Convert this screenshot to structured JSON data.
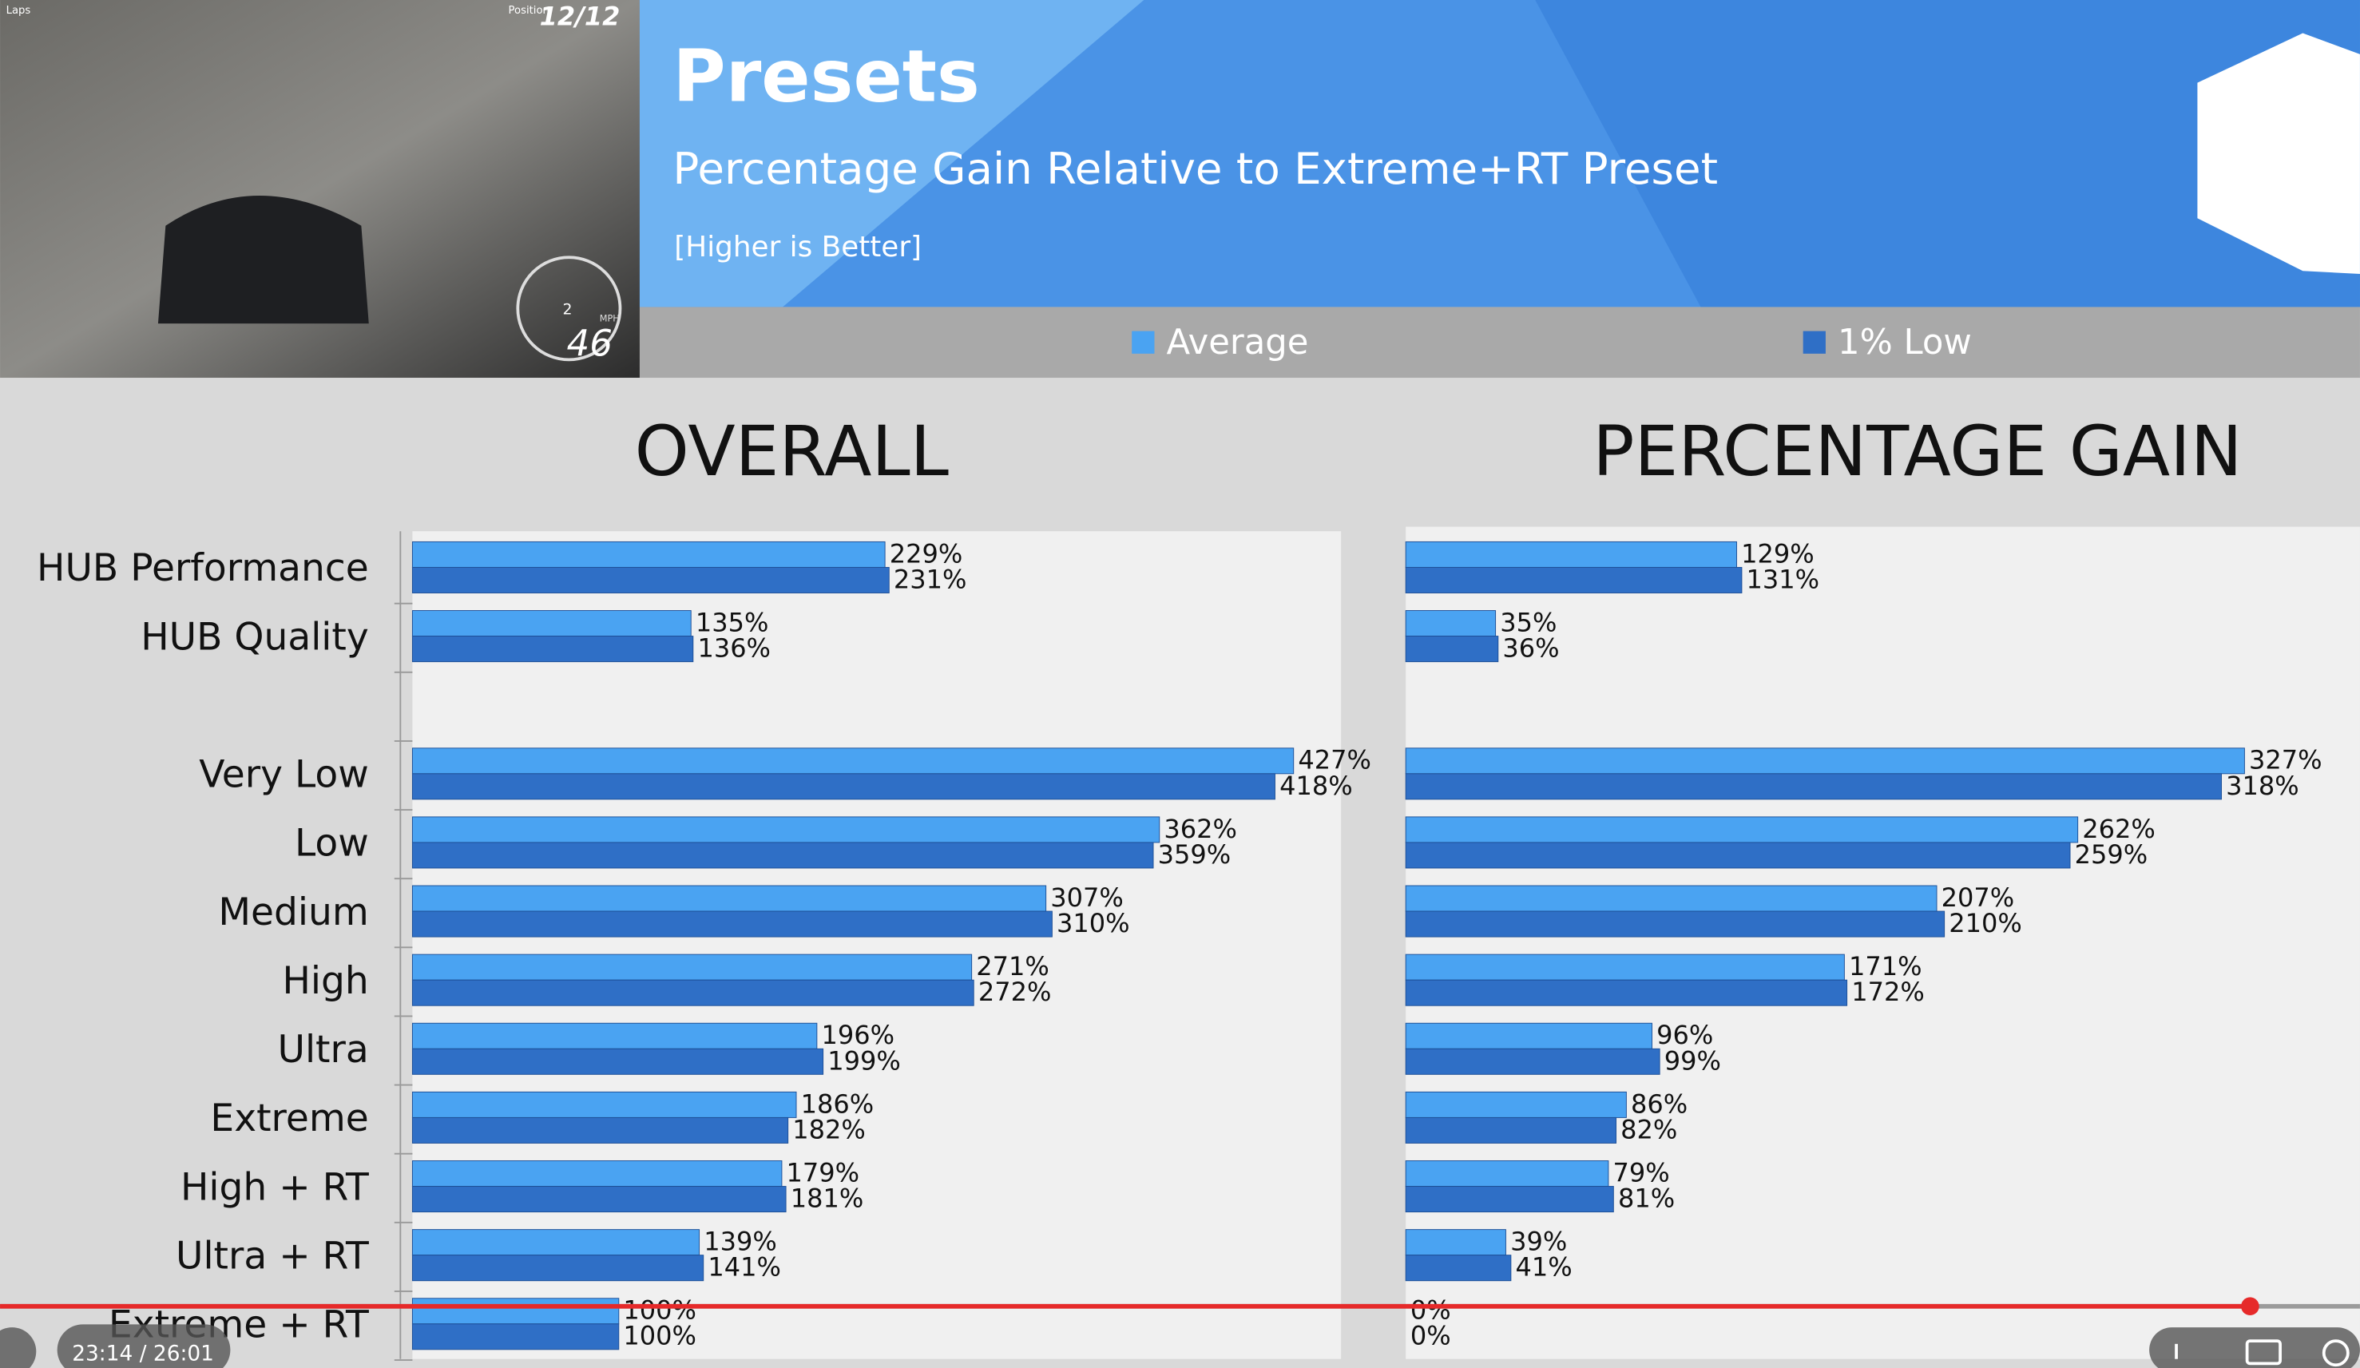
{
  "header": {
    "title": "Presets",
    "subtitle": "Percentage Gain Relative to Extreme+RT Preset",
    "note": "[Higher is Better]"
  },
  "video_hud": {
    "laps": "Laps",
    "position": "Position",
    "place": "12/12",
    "gear": "2",
    "unit": "MPH",
    "speed": "46"
  },
  "player": {
    "time": "23:14 / 26:01"
  },
  "chart_data": [
    {
      "type": "bar",
      "orientation": "horizontal",
      "title": "OVERALL",
      "categories": [
        "HUB Performance",
        "HUB Quality",
        null,
        "Very Low",
        "Low",
        "Medium",
        "High",
        "Ultra",
        "Extreme",
        "High + RT",
        "Ultra + RT",
        "Extreme + RT"
      ],
      "xlim": [
        0,
        450
      ],
      "series": [
        {
          "name": "Average",
          "color": "#4aa3f2",
          "values": [
            229,
            135,
            null,
            427,
            362,
            307,
            271,
            196,
            186,
            179,
            139,
            100
          ],
          "value_labels": [
            "229%",
            "135%",
            null,
            "427%",
            "362%",
            "307%",
            "271%",
            "196%",
            "186%",
            "179%",
            "139%",
            "100%"
          ]
        },
        {
          "name": "1% Low",
          "color": "#2f6fc6",
          "values": [
            231,
            136,
            null,
            418,
            359,
            310,
            272,
            199,
            182,
            181,
            141,
            100
          ],
          "value_labels": [
            "231%",
            "136%",
            null,
            "418%",
            "359%",
            "310%",
            "272%",
            "199%",
            "182%",
            "181%",
            "141%",
            "100%"
          ]
        }
      ]
    },
    {
      "type": "bar",
      "orientation": "horizontal",
      "title": "PERCENTAGE GAIN",
      "xlim": [
        0,
        372
      ],
      "series": [
        {
          "name": "Average",
          "color": "#4aa3f2",
          "values": [
            129,
            35,
            null,
            327,
            262,
            207,
            171,
            96,
            86,
            79,
            39,
            0
          ],
          "value_labels": [
            "129%",
            "35%",
            null,
            "327%",
            "262%",
            "207%",
            "171%",
            "96%",
            "86%",
            "79%",
            "39%",
            "0%"
          ]
        },
        {
          "name": "1% Low",
          "color": "#2f6fc6",
          "values": [
            131,
            36,
            null,
            318,
            259,
            210,
            172,
            99,
            82,
            81,
            41,
            0
          ],
          "value_labels": [
            "131%",
            "36%",
            null,
            "318%",
            "259%",
            "210%",
            "172%",
            "99%",
            "82%",
            "81%",
            "41%",
            "0%"
          ]
        }
      ]
    }
  ]
}
